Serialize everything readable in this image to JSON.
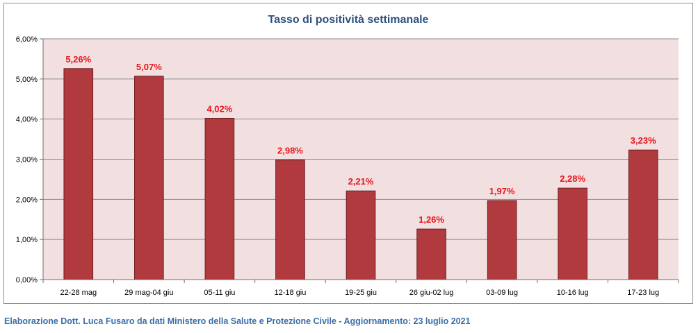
{
  "chart_data": {
    "type": "bar",
    "title": "Tasso di positività settimanale",
    "xlabel": "",
    "ylabel": "",
    "categories": [
      "22-28 mag",
      "29 mag-04 giu",
      "05-11 giu",
      "12-18 giu",
      "19-25 giu",
      "26 giu-02 lug",
      "03-09 lug",
      "10-16 lug",
      "17-23 lug"
    ],
    "values": [
      5.26,
      5.07,
      4.02,
      2.98,
      2.21,
      1.26,
      1.97,
      2.28,
      3.23
    ],
    "data_labels": [
      "5,26%",
      "5,07%",
      "4,02%",
      "2,98%",
      "2,21%",
      "1,26%",
      "1,97%",
      "2,28%",
      "3,23%"
    ],
    "ylim": [
      0,
      6
    ],
    "yticks": [
      0,
      1,
      2,
      3,
      4,
      5,
      6
    ],
    "ytick_labels": [
      "0,00%",
      "1,00%",
      "2,00%",
      "3,00%",
      "4,00%",
      "5,00%",
      "6,00%"
    ],
    "grid": true,
    "legend": "none",
    "colors": {
      "bar": "#b03a3e",
      "bar_edge": "#6e1e21",
      "plot_background": "#f2e0e0",
      "gridline": "#8a8a8a",
      "data_label": "#e8141c",
      "title": "#2f4f7f"
    }
  },
  "footer": {
    "credit": "Elaborazione Dott. Luca Fusaro da dati Ministero della Salute e Protezione Civile - Aggiornamento: 23 luglio 2021"
  }
}
